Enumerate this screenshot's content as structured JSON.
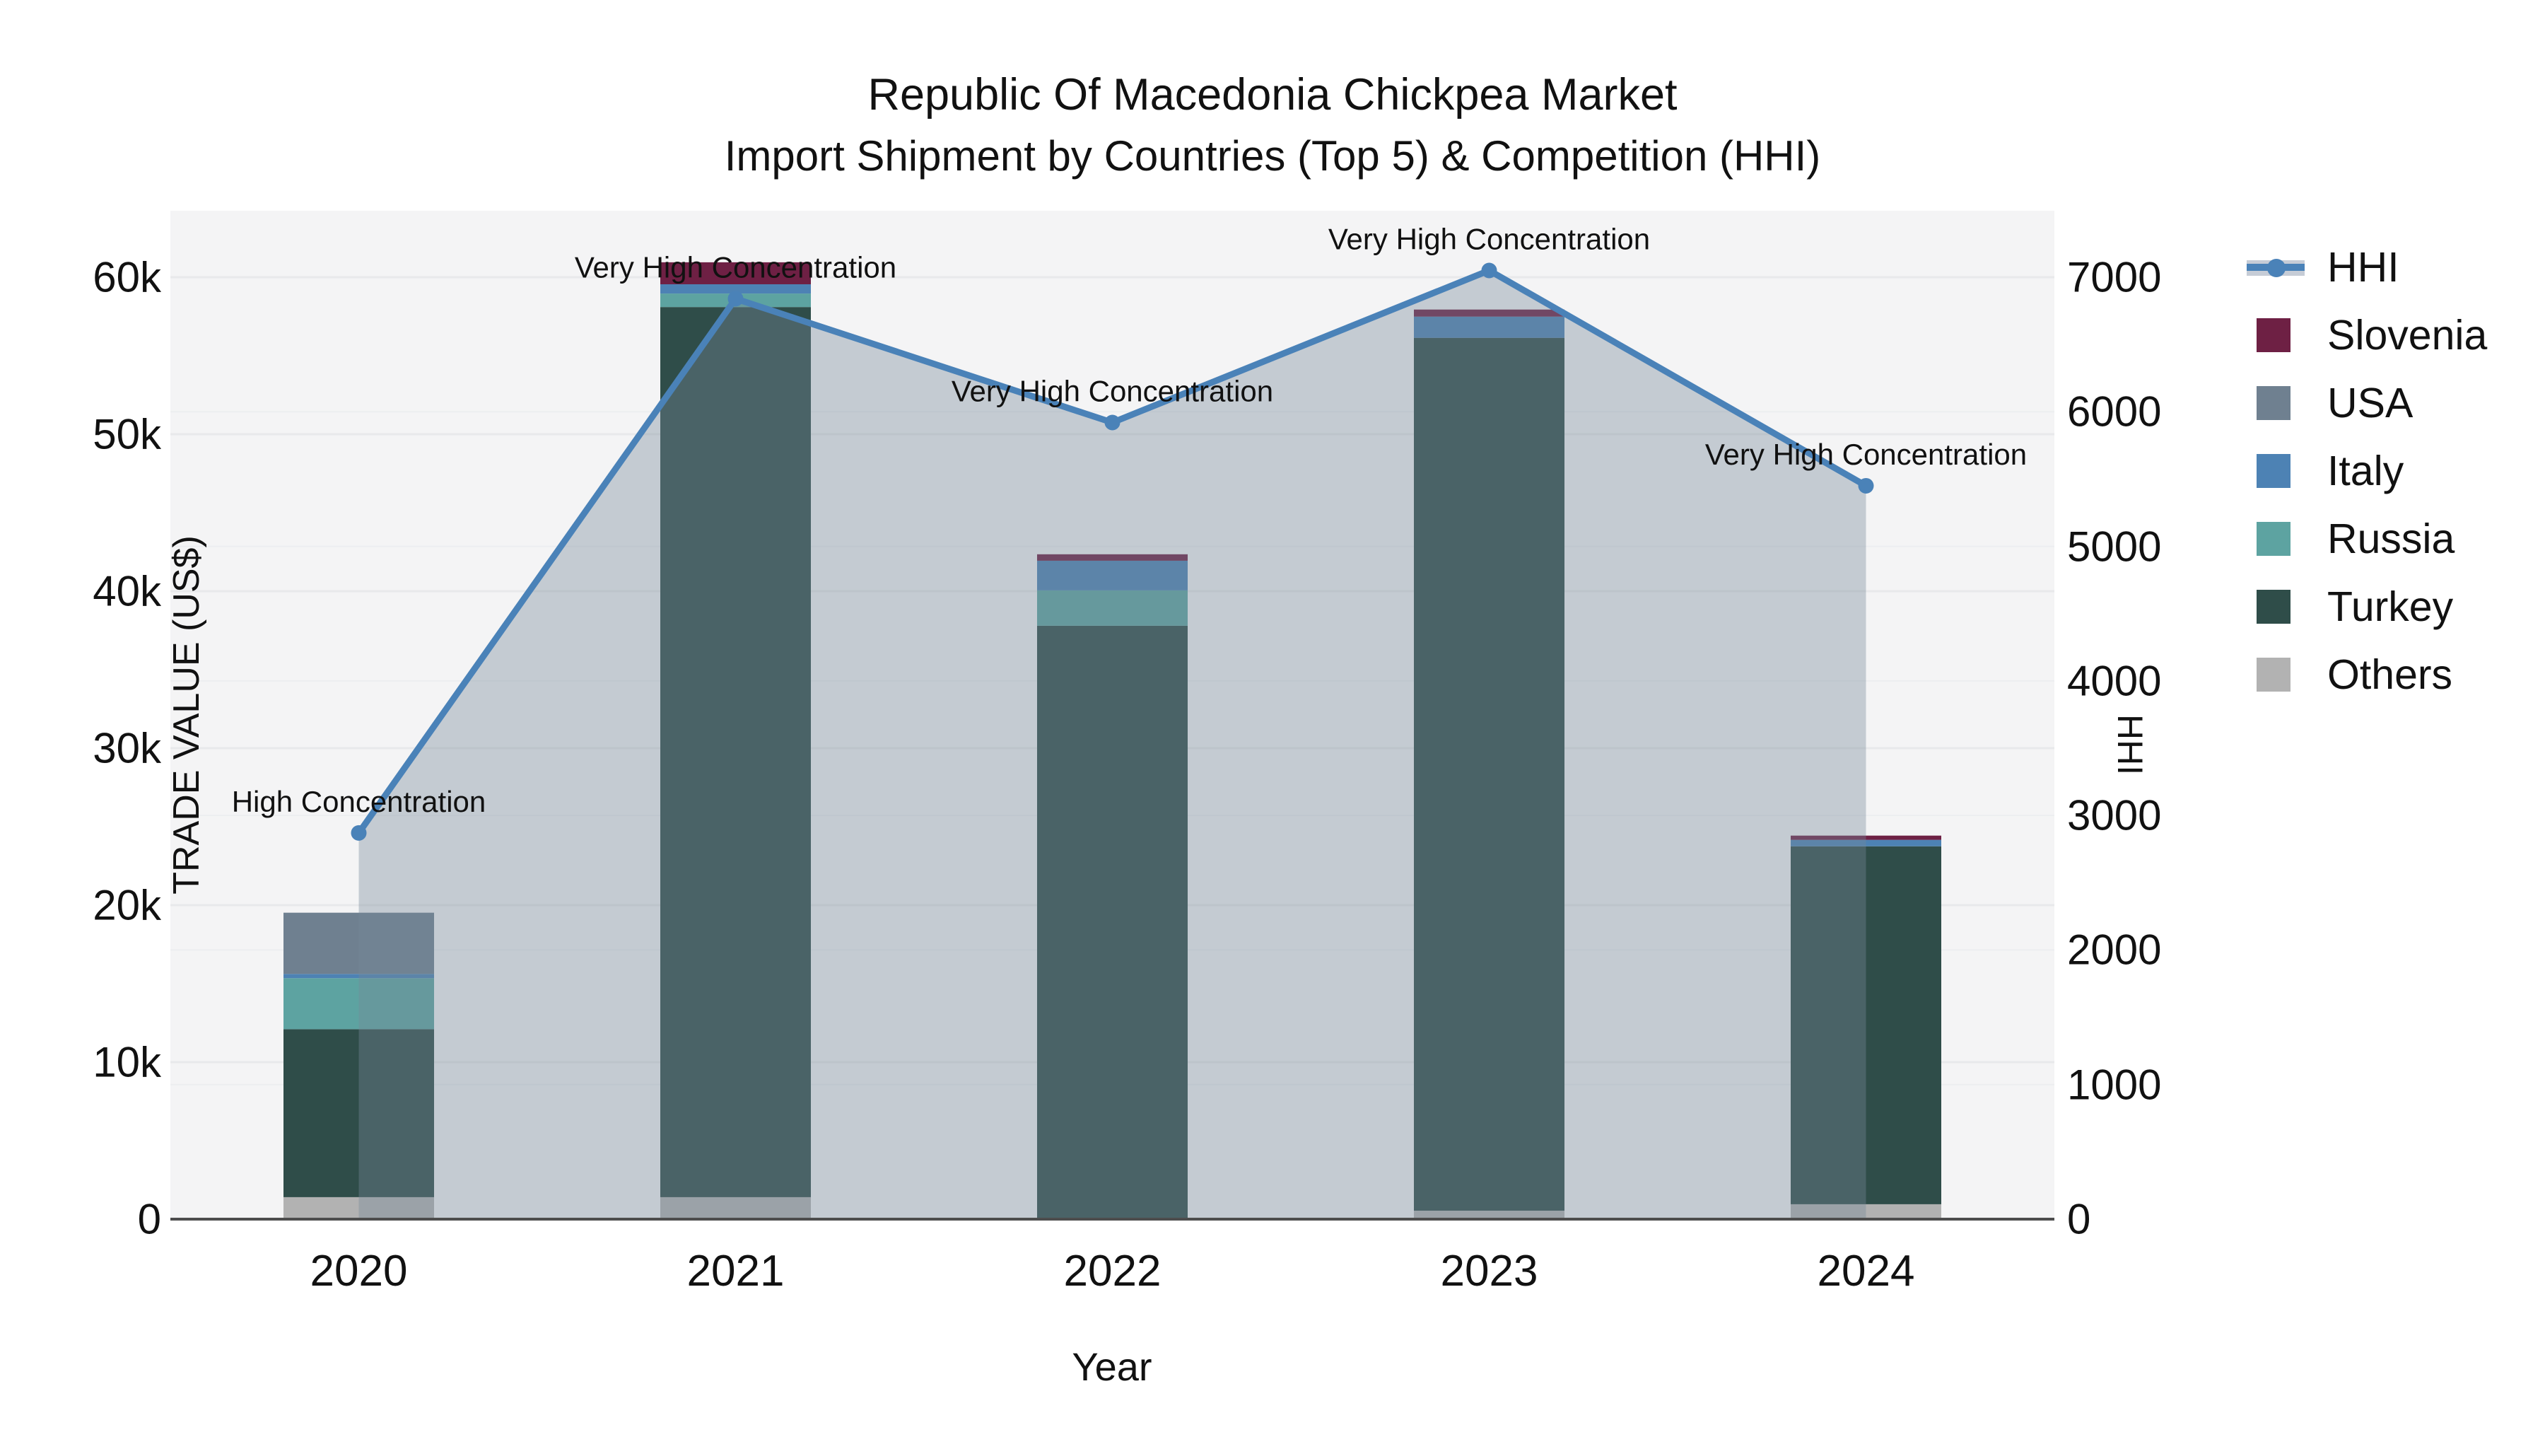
{
  "title": {
    "line1": "Republic Of Macedonia Chickpea Market",
    "line2": "Import Shipment by Countries (Top 5) & Competition (HHI)"
  },
  "axes": {
    "x": {
      "title": "Year",
      "ticks": [
        "2020",
        "2021",
        "2022",
        "2023",
        "2024"
      ]
    },
    "y_left": {
      "title": "TRADE VALUE (US$)",
      "ticks": [
        "0",
        "10k",
        "20k",
        "30k",
        "40k",
        "50k",
        "60k"
      ],
      "tick_values": [
        0,
        10000,
        20000,
        30000,
        40000,
        50000,
        60000
      ]
    },
    "y_right": {
      "title": "HHI",
      "ticks": [
        "0",
        "1000",
        "2000",
        "3000",
        "4000",
        "5000",
        "6000",
        "7000"
      ],
      "tick_values": [
        0,
        1000,
        2000,
        3000,
        4000,
        5000,
        6000,
        7000
      ]
    }
  },
  "legend": {
    "items": [
      {
        "label": "HHI",
        "type": "line",
        "color": "#4a82b8"
      },
      {
        "label": "Slovenia",
        "type": "swatch",
        "color": "#6e2044"
      },
      {
        "label": "USA",
        "type": "swatch",
        "color": "#6f8090"
      },
      {
        "label": "Italy",
        "type": "swatch",
        "color": "#4d82b4"
      },
      {
        "label": "Russia",
        "type": "swatch",
        "color": "#5da3a1"
      },
      {
        "label": "Turkey",
        "type": "swatch",
        "color": "#2f4d49"
      },
      {
        "label": "Others",
        "type": "swatch",
        "color": "#b2b2b2"
      }
    ]
  },
  "chart_data": {
    "type": "bar",
    "subtype": "stacked-bars-with-line",
    "categories": [
      "2020",
      "2021",
      "2022",
      "2023",
      "2024"
    ],
    "xlabel": "Year",
    "ylabel_left": "TRADE VALUE (US$)",
    "ylabel_right": "HHI",
    "ylim_left": [
      0,
      64000
    ],
    "ylim_right": [
      0,
      7470
    ],
    "grid": true,
    "legend_position": "right",
    "stack_order_bottom_to_top": [
      "Others",
      "Turkey",
      "Russia",
      "Italy",
      "USA",
      "Slovenia"
    ],
    "series": [
      {
        "name": "Slovenia",
        "color": "#6e2044",
        "values": [
          0,
          1400,
          410,
          450,
          270
        ]
      },
      {
        "name": "USA",
        "color": "#6f8090",
        "values": [
          3900,
          0,
          0,
          0,
          0
        ]
      },
      {
        "name": "Italy",
        "color": "#4d82b4",
        "values": [
          270,
          590,
          1890,
          1350,
          410
        ]
      },
      {
        "name": "Russia",
        "color": "#5da3a1",
        "values": [
          3250,
          860,
          2250,
          0,
          0
        ]
      },
      {
        "name": "Turkey",
        "color": "#2f4d49",
        "values": [
          10700,
          56700,
          37800,
          55600,
          22800
        ]
      },
      {
        "name": "Others",
        "color": "#b2b2b2",
        "values": [
          1400,
          1400,
          0,
          540,
          950
        ]
      }
    ],
    "line_series": {
      "name": "HHI",
      "axis": "right",
      "color": "#4a82b8",
      "fill_color": "rgba(119,136,153,0.38)",
      "values": [
        2870,
        6840,
        5920,
        7050,
        5450
      ]
    },
    "annotations": [
      {
        "category": "2020",
        "text": "High Concentration"
      },
      {
        "category": "2021",
        "text": "Very High Concentration"
      },
      {
        "category": "2022",
        "text": "Very High Concentration"
      },
      {
        "category": "2023",
        "text": "Very High Concentration"
      },
      {
        "category": "2024",
        "text": "Very High Concentration"
      }
    ]
  }
}
